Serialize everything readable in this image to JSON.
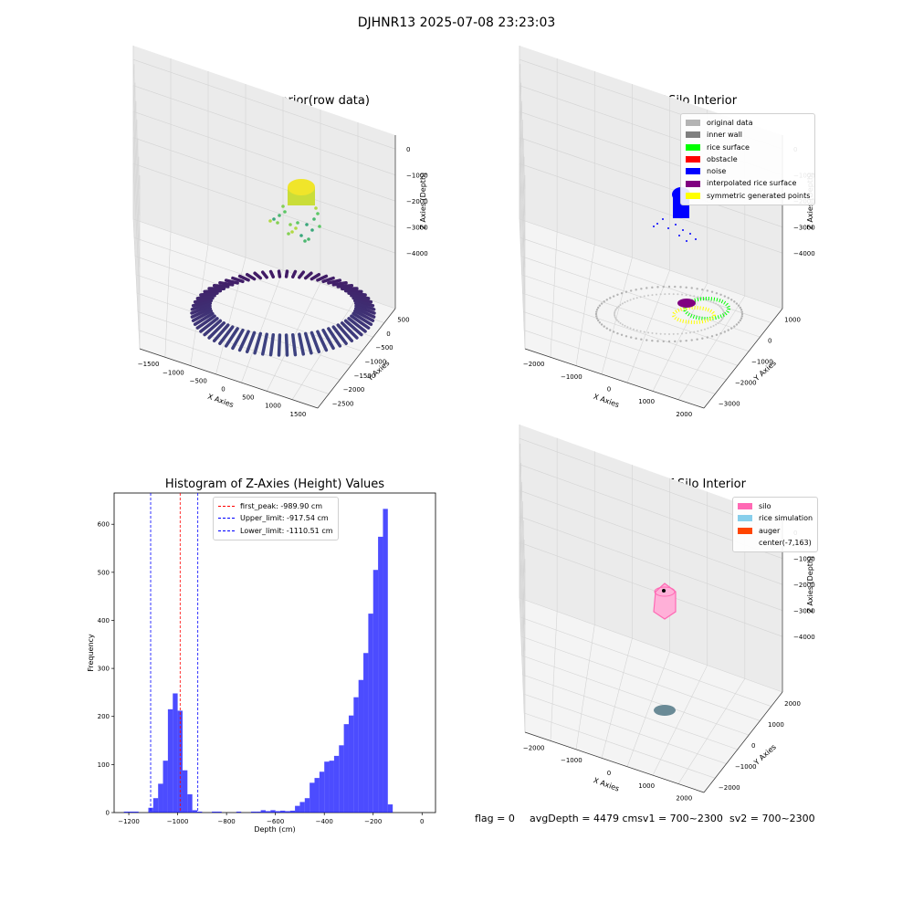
{
  "figure": {
    "suptitle": "DJHNR13 2025-07-08 23:23:03",
    "status": {
      "flag": "flag = 0",
      "avg_depth": "avgDepth = 4479 cmsv1 = 700~2300",
      "sv2": "sv2 = 700~2300"
    }
  },
  "chart_data": [
    {
      "type": "scatter",
      "title": "3D Plot of Silo Interior(row data)",
      "xlabel": "X Axies",
      "ylabel": "Y Axies",
      "zlabel": "Z Axies (Depth)",
      "x_ticks": [
        "−1500",
        "−1000",
        "−500",
        "0",
        "500",
        "1000",
        "1500"
      ],
      "y_ticks": [
        "500",
        "0",
        "−500",
        "−1000",
        "−1500",
        "−2000",
        "−2500"
      ],
      "z_ticks": [
        "0",
        "−1000",
        "−2000",
        "−3000",
        "−4000"
      ],
      "colormap": "viridis"
    },
    {
      "type": "scatter",
      "title": "3D classify of Silo Interior",
      "xlabel": "X Axies",
      "ylabel": "Y Axies",
      "zlabel": "Z Axies (Depth)",
      "x_ticks": [
        "−2000",
        "−1000",
        "0",
        "1000",
        "2000"
      ],
      "y_ticks": [
        "1000",
        "0",
        "−1000",
        "−2000",
        "−3000"
      ],
      "z_ticks": [
        "0",
        "−1000",
        "−2000",
        "−3000",
        "−4000"
      ],
      "legend_position": "top-right",
      "legend": [
        {
          "label": "original data",
          "color": "#b3b3b3"
        },
        {
          "label": "inner wall",
          "color": "#808080"
        },
        {
          "label": "rice surface",
          "color": "#00ff00"
        },
        {
          "label": "obstacle",
          "color": "#ff0000"
        },
        {
          "label": "noise",
          "color": "#0000ff"
        },
        {
          "label": "interpolated rice surface",
          "color": "#800080"
        },
        {
          "label": "symmetric generated points",
          "color": "#ffff00"
        }
      ]
    },
    {
      "type": "bar",
      "title": "Histogram of Z-Axies (Height) Values",
      "xlabel": "Depth (cm)",
      "ylabel": "Frequency",
      "xlim": [
        -1260,
        55
      ],
      "ylim": [
        0,
        665
      ],
      "x_ticks": [
        -1200,
        -1000,
        -800,
        -600,
        -400,
        -200,
        0
      ],
      "x_tick_labels": [
        "−1200",
        "−1000",
        "−800",
        "−600",
        "−400",
        "−200",
        "0"
      ],
      "y_ticks": [
        0,
        100,
        200,
        300,
        400,
        500,
        600
      ],
      "bar_color": "#0000ff",
      "bin_width": 20,
      "bins": [
        {
          "x0": -1220,
          "v": 2
        },
        {
          "x0": -1200,
          "v": 2
        },
        {
          "x0": -1180,
          "v": 2
        },
        {
          "x0": -1120,
          "v": 10
        },
        {
          "x0": -1100,
          "v": 30
        },
        {
          "x0": -1080,
          "v": 60
        },
        {
          "x0": -1060,
          "v": 108
        },
        {
          "x0": -1040,
          "v": 215
        },
        {
          "x0": -1020,
          "v": 248
        },
        {
          "x0": -1000,
          "v": 212
        },
        {
          "x0": -980,
          "v": 88
        },
        {
          "x0": -960,
          "v": 38
        },
        {
          "x0": -940,
          "v": 5
        },
        {
          "x0": -920,
          "v": 2
        },
        {
          "x0": -860,
          "v": 2
        },
        {
          "x0": -840,
          "v": 2
        },
        {
          "x0": -760,
          "v": 2
        },
        {
          "x0": -700,
          "v": 2
        },
        {
          "x0": -680,
          "v": 2
        },
        {
          "x0": -660,
          "v": 5
        },
        {
          "x0": -640,
          "v": 3
        },
        {
          "x0": -620,
          "v": 5
        },
        {
          "x0": -600,
          "v": 3
        },
        {
          "x0": -580,
          "v": 4
        },
        {
          "x0": -560,
          "v": 3
        },
        {
          "x0": -540,
          "v": 4
        },
        {
          "x0": -520,
          "v": 14
        },
        {
          "x0": -500,
          "v": 22
        },
        {
          "x0": -480,
          "v": 30
        },
        {
          "x0": -460,
          "v": 62
        },
        {
          "x0": -440,
          "v": 72
        },
        {
          "x0": -420,
          "v": 85
        },
        {
          "x0": -400,
          "v": 106
        },
        {
          "x0": -380,
          "v": 108
        },
        {
          "x0": -360,
          "v": 118
        },
        {
          "x0": -340,
          "v": 140
        },
        {
          "x0": -320,
          "v": 184
        },
        {
          "x0": -300,
          "v": 202
        },
        {
          "x0": -280,
          "v": 240
        },
        {
          "x0": -260,
          "v": 276
        },
        {
          "x0": -240,
          "v": 332
        },
        {
          "x0": -220,
          "v": 414
        },
        {
          "x0": -200,
          "v": 505
        },
        {
          "x0": -180,
          "v": 574
        },
        {
          "x0": -160,
          "v": 632
        },
        {
          "x0": -140,
          "v": 17
        }
      ],
      "vlines": [
        {
          "label": "first_peak: -989.90 cm",
          "x": -989.9,
          "color": "#ff0000"
        },
        {
          "label": "Upper_limit: -917.54 cm",
          "x": -917.54,
          "color": "#0000ff"
        },
        {
          "label": "Lower_limit: -1110.51 cm",
          "x": -1110.51,
          "color": "#0000ff"
        }
      ],
      "legend_position": "top-center"
    },
    {
      "type": "scatter",
      "title": "3D simulation of Silo Interior",
      "xlabel": "X Axies",
      "ylabel": "Y Axies",
      "zlabel": "Z Axies (Depth)",
      "x_ticks": [
        "−2000",
        "−1000",
        "0",
        "1000",
        "2000"
      ],
      "y_ticks": [
        "2000",
        "1000",
        "0",
        "−1000",
        "−2000"
      ],
      "z_ticks": [
        "0",
        "−1000",
        "−2000",
        "−3000",
        "−4000"
      ],
      "legend_position": "top-right",
      "legend": [
        {
          "label": "silo",
          "color": "#ff69b4"
        },
        {
          "label": "rice simulation",
          "color": "#87ceeb"
        },
        {
          "label": "auger",
          "color": "#ff4500"
        },
        {
          "label": "center(-7,163)",
          "color": ""
        }
      ]
    }
  ]
}
